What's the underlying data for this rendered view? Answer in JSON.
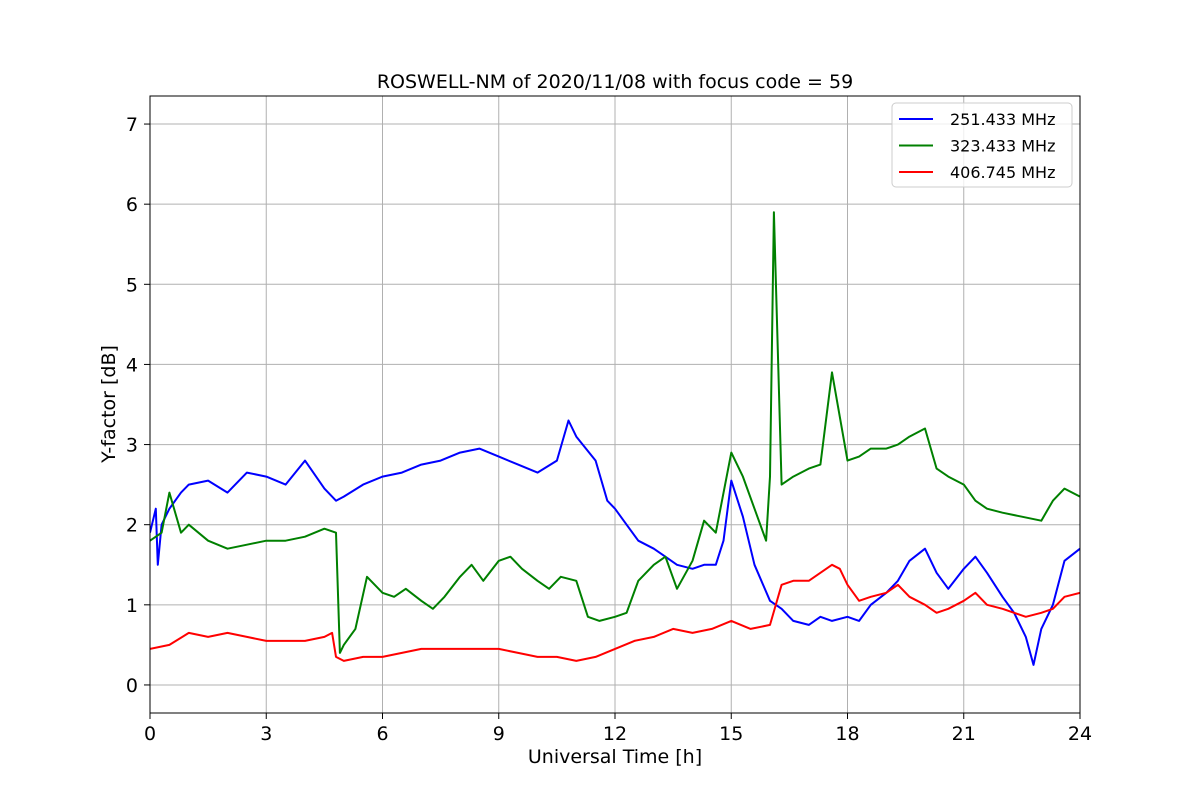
{
  "chart_data": {
    "type": "line",
    "title": "ROSWELL-NM of 2020/11/08 with focus code = 59",
    "xlabel": "Universal Time [h]",
    "ylabel": "Y-factor [dB]",
    "xlim": [
      0,
      24
    ],
    "ylim": [
      -0.35,
      7.35
    ],
    "xticks": [
      0,
      3,
      6,
      9,
      12,
      15,
      18,
      21,
      24
    ],
    "yticks": [
      0,
      1,
      2,
      3,
      4,
      5,
      6,
      7
    ],
    "grid": true,
    "legend_position": "top-right",
    "series": [
      {
        "name": "251.433 MHz",
        "color": "#0000ff",
        "x": [
          0,
          0.15,
          0.2,
          0.3,
          0.5,
          0.8,
          1.0,
          1.5,
          2.0,
          2.5,
          3.0,
          3.5,
          4.0,
          4.5,
          4.8,
          5.0,
          5.5,
          6.0,
          6.5,
          7.0,
          7.5,
          8.0,
          8.5,
          9.0,
          9.5,
          10.0,
          10.5,
          10.8,
          11.0,
          11.5,
          11.8,
          12.0,
          12.3,
          12.6,
          13.0,
          13.3,
          13.6,
          14.0,
          14.3,
          14.6,
          14.8,
          15.0,
          15.3,
          15.6,
          16.0,
          16.3,
          16.6,
          17.0,
          17.3,
          17.6,
          18.0,
          18.3,
          18.6,
          19.0,
          19.3,
          19.6,
          20.0,
          20.3,
          20.6,
          21.0,
          21.3,
          21.6,
          22.0,
          22.3,
          22.6,
          22.8,
          23.0,
          23.3,
          23.6,
          24.0
        ],
        "y": [
          1.9,
          2.2,
          1.5,
          2.0,
          2.2,
          2.4,
          2.5,
          2.55,
          2.4,
          2.65,
          2.6,
          2.5,
          2.8,
          2.45,
          2.3,
          2.35,
          2.5,
          2.6,
          2.65,
          2.75,
          2.8,
          2.9,
          2.95,
          2.85,
          2.75,
          2.65,
          2.8,
          3.3,
          3.1,
          2.8,
          2.3,
          2.2,
          2.0,
          1.8,
          1.7,
          1.6,
          1.5,
          1.45,
          1.5,
          1.5,
          1.8,
          2.55,
          2.1,
          1.5,
          1.05,
          0.95,
          0.8,
          0.75,
          0.85,
          0.8,
          0.85,
          0.8,
          1.0,
          1.15,
          1.3,
          1.55,
          1.7,
          1.4,
          1.2,
          1.45,
          1.6,
          1.4,
          1.1,
          0.9,
          0.6,
          0.25,
          0.7,
          1.0,
          1.55,
          1.7
        ]
      },
      {
        "name": "323.433 MHz",
        "color": "#008000",
        "x": [
          0,
          0.3,
          0.5,
          0.8,
          1.0,
          1.5,
          2.0,
          2.5,
          3.0,
          3.5,
          4.0,
          4.5,
          4.8,
          4.9,
          5.0,
          5.3,
          5.6,
          6.0,
          6.3,
          6.6,
          7.0,
          7.3,
          7.6,
          8.0,
          8.3,
          8.6,
          9.0,
          9.3,
          9.6,
          10.0,
          10.3,
          10.6,
          11.0,
          11.3,
          11.6,
          12.0,
          12.3,
          12.6,
          13.0,
          13.3,
          13.6,
          14.0,
          14.3,
          14.6,
          15.0,
          15.3,
          15.6,
          15.9,
          16.0,
          16.1,
          16.3,
          16.6,
          17.0,
          17.3,
          17.6,
          18.0,
          18.3,
          18.6,
          19.0,
          19.3,
          19.6,
          20.0,
          20.3,
          20.6,
          21.0,
          21.3,
          21.6,
          22.0,
          22.5,
          23.0,
          23.3,
          23.6,
          24.0
        ],
        "y": [
          1.8,
          1.9,
          2.4,
          1.9,
          2.0,
          1.8,
          1.7,
          1.75,
          1.8,
          1.8,
          1.85,
          1.95,
          1.9,
          0.4,
          0.5,
          0.7,
          1.35,
          1.15,
          1.1,
          1.2,
          1.05,
          0.95,
          1.1,
          1.35,
          1.5,
          1.3,
          1.55,
          1.6,
          1.45,
          1.3,
          1.2,
          1.35,
          1.3,
          0.85,
          0.8,
          0.85,
          0.9,
          1.3,
          1.5,
          1.6,
          1.2,
          1.55,
          2.05,
          1.9,
          2.9,
          2.6,
          2.2,
          1.8,
          2.6,
          5.9,
          2.5,
          2.6,
          2.7,
          2.75,
          3.9,
          2.8,
          2.85,
          2.95,
          2.95,
          3.0,
          3.1,
          3.2,
          2.7,
          2.6,
          2.5,
          2.3,
          2.2,
          2.15,
          2.1,
          2.05,
          2.3,
          2.45,
          2.35
        ]
      },
      {
        "name": "406.745 MHz",
        "color": "#ff0000",
        "x": [
          0,
          0.5,
          1.0,
          1.5,
          2.0,
          2.5,
          3.0,
          3.5,
          4.0,
          4.5,
          4.7,
          4.8,
          5.0,
          5.5,
          6.0,
          6.5,
          7.0,
          7.5,
          8.0,
          8.5,
          9.0,
          9.5,
          10.0,
          10.5,
          11.0,
          11.5,
          12.0,
          12.5,
          13.0,
          13.5,
          14.0,
          14.5,
          15.0,
          15.5,
          16.0,
          16.3,
          16.6,
          17.0,
          17.3,
          17.6,
          17.8,
          18.0,
          18.3,
          18.6,
          19.0,
          19.3,
          19.6,
          20.0,
          20.3,
          20.6,
          21.0,
          21.3,
          21.6,
          22.0,
          22.3,
          22.6,
          23.0,
          23.3,
          23.6,
          24.0
        ],
        "y": [
          0.45,
          0.5,
          0.65,
          0.6,
          0.65,
          0.6,
          0.55,
          0.55,
          0.55,
          0.6,
          0.65,
          0.35,
          0.3,
          0.35,
          0.35,
          0.4,
          0.45,
          0.45,
          0.45,
          0.45,
          0.45,
          0.4,
          0.35,
          0.35,
          0.3,
          0.35,
          0.45,
          0.55,
          0.6,
          0.7,
          0.65,
          0.7,
          0.8,
          0.7,
          0.75,
          1.25,
          1.3,
          1.3,
          1.4,
          1.5,
          1.45,
          1.25,
          1.05,
          1.1,
          1.15,
          1.25,
          1.1,
          1.0,
          0.9,
          0.95,
          1.05,
          1.15,
          1.0,
          0.95,
          0.9,
          0.85,
          0.9,
          0.95,
          1.1,
          1.15
        ]
      }
    ]
  }
}
